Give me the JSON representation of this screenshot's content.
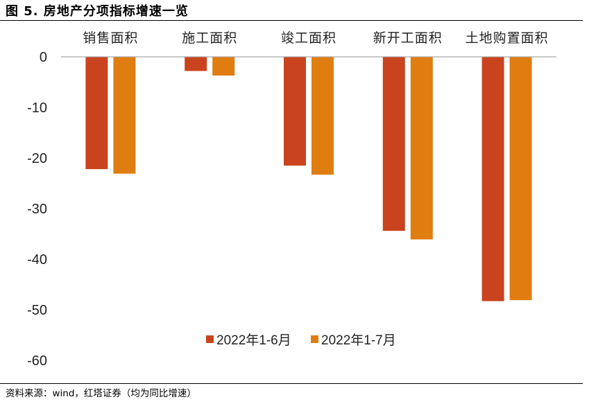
{
  "figure": {
    "title": "图 5. 房地产分项指标增速一览",
    "source": "资料来源：wind，红塔证券（均为同比增速）"
  },
  "chart_data": {
    "type": "bar",
    "categories": [
      "销售面积",
      "施工面积",
      "竣工面积",
      "新开工面积",
      "土地购置面积"
    ],
    "series": [
      {
        "name": "2022年1-6月",
        "color": "#C9441E",
        "values": [
          -22.2,
          -2.8,
          -21.5,
          -34.4,
          -48.3
        ]
      },
      {
        "name": "2022年1-7月",
        "color": "#E07D10",
        "values": [
          -23.1,
          -3.7,
          -23.3,
          -36.1,
          -48.1
        ]
      }
    ],
    "ylim": [
      -60,
      0
    ],
    "yticks": [
      0,
      -10,
      -20,
      -30,
      -40,
      -50,
      -60
    ],
    "category_axis_position": "top",
    "legend_position": "bottom-center",
    "grid": false
  }
}
